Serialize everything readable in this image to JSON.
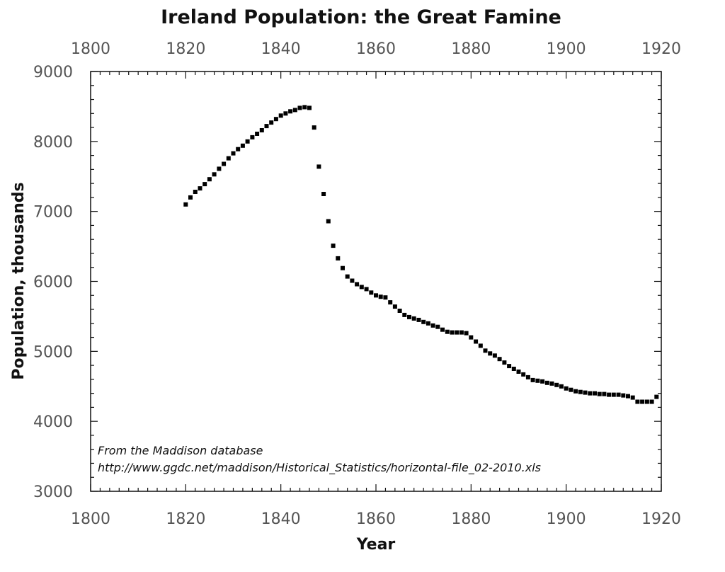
{
  "chart_data": {
    "type": "scatter",
    "title": "Ireland Population: the Great Famine",
    "xlabel": "Year",
    "ylabel": "Population, thousands",
    "xlim": [
      1800,
      1920
    ],
    "ylim": [
      3000,
      9000
    ],
    "x_ticks": [
      "1800",
      "1820",
      "1840",
      "1860",
      "1880",
      "1900",
      "1920"
    ],
    "y_ticks": [
      "3000",
      "4000",
      "5000",
      "6000",
      "7000",
      "8000",
      "9000"
    ],
    "x_tick_values": [
      1800,
      1820,
      1840,
      1860,
      1880,
      1900,
      1920
    ],
    "y_tick_values": [
      3000,
      4000,
      5000,
      6000,
      7000,
      8000,
      9000
    ],
    "annotations": [
      "From the Maddison database",
      "http://www.ggdc.net/maddison/Historical_Statistics/horizontal-file_02-2010.xls"
    ],
    "grid": false,
    "series": [
      {
        "name": "Ireland population",
        "x": [
          1820,
          1821,
          1822,
          1823,
          1824,
          1825,
          1826,
          1827,
          1828,
          1829,
          1830,
          1831,
          1832,
          1833,
          1834,
          1835,
          1836,
          1837,
          1838,
          1839,
          1840,
          1841,
          1842,
          1843,
          1844,
          1845,
          1846,
          1847,
          1848,
          1849,
          1850,
          1851,
          1852,
          1853,
          1854,
          1855,
          1856,
          1857,
          1858,
          1859,
          1860,
          1861,
          1862,
          1863,
          1864,
          1865,
          1866,
          1867,
          1868,
          1869,
          1870,
          1871,
          1872,
          1873,
          1874,
          1875,
          1876,
          1877,
          1878,
          1879,
          1880,
          1881,
          1882,
          1883,
          1884,
          1885,
          1886,
          1887,
          1888,
          1889,
          1890,
          1891,
          1892,
          1893,
          1894,
          1895,
          1896,
          1897,
          1898,
          1899,
          1900,
          1901,
          1902,
          1903,
          1904,
          1905,
          1906,
          1907,
          1908,
          1909,
          1910,
          1911,
          1912,
          1913,
          1914,
          1915,
          1916,
          1917,
          1918,
          1919
        ],
        "values": [
          7100,
          7200,
          7280,
          7330,
          7390,
          7460,
          7530,
          7610,
          7680,
          7760,
          7830,
          7890,
          7940,
          8000,
          8060,
          8110,
          8160,
          8220,
          8270,
          8320,
          8370,
          8400,
          8430,
          8450,
          8480,
          8490,
          8480,
          8200,
          7640,
          7250,
          6860,
          6510,
          6330,
          6190,
          6070,
          6010,
          5960,
          5920,
          5890,
          5840,
          5800,
          5780,
          5770,
          5700,
          5640,
          5580,
          5520,
          5490,
          5470,
          5450,
          5420,
          5400,
          5370,
          5350,
          5310,
          5280,
          5270,
          5270,
          5270,
          5260,
          5200,
          5140,
          5080,
          5010,
          4970,
          4940,
          4890,
          4840,
          4790,
          4750,
          4710,
          4670,
          4630,
          4590,
          4580,
          4570,
          4550,
          4540,
          4520,
          4500,
          4470,
          4450,
          4430,
          4420,
          4410,
          4400,
          4400,
          4390,
          4390,
          4380,
          4380,
          4380,
          4370,
          4360,
          4340,
          4280,
          4280,
          4280,
          4280,
          4350
        ]
      }
    ]
  }
}
